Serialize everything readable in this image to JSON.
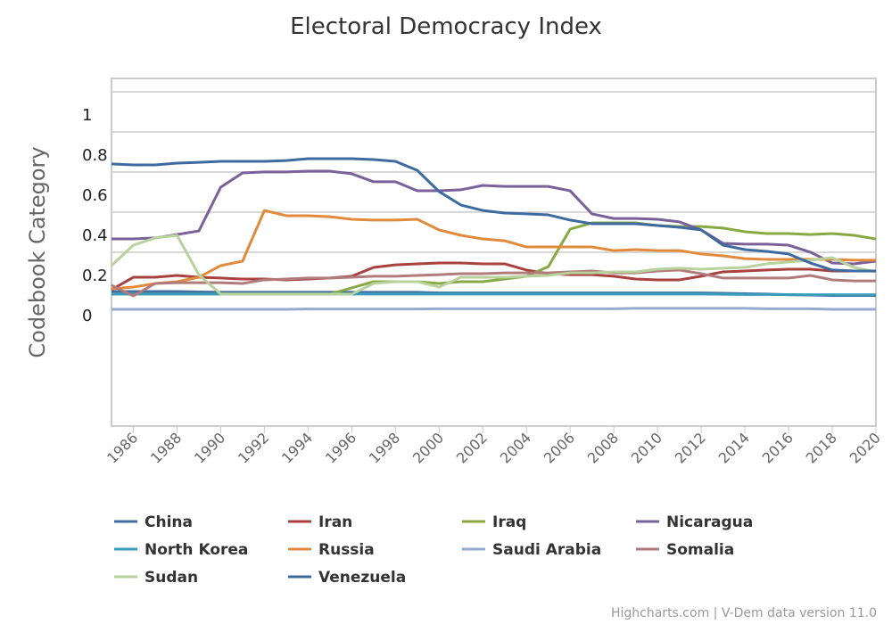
{
  "chart_data": {
    "type": "line",
    "title": "Electoral Democracy Index",
    "xlabel": "",
    "ylabel": "Codebook Category",
    "x": [
      1985,
      1986,
      1987,
      1988,
      1989,
      1990,
      1991,
      1992,
      1993,
      1994,
      1995,
      1996,
      1997,
      1998,
      1999,
      2000,
      2001,
      2002,
      2003,
      2004,
      2005,
      2006,
      2007,
      2008,
      2009,
      2010,
      2011,
      2012,
      2013,
      2014,
      2015,
      2016,
      2017,
      2018,
      2019,
      2020
    ],
    "x_ticks": [
      "1986",
      "1988",
      "1990",
      "1992",
      "1994",
      "1996",
      "1998",
      "2000",
      "2002",
      "2004",
      "2006",
      "2008",
      "2010",
      "2012",
      "2014",
      "2016",
      "2018",
      "2020"
    ],
    "y_ticks": [
      {
        "value": 1,
        "label": "1"
      },
      {
        "value": 0.8,
        "label": "0.8"
      },
      {
        "value": 0.6,
        "label": "0.6"
      },
      {
        "value": 0.4,
        "label": "0.4"
      },
      {
        "value": 0.2,
        "label": "0.2"
      },
      {
        "value": 0,
        "label": "0"
      }
    ],
    "ylim": [
      -0.55,
      1.17
    ],
    "grid": true,
    "legend_placement": "bottom",
    "series": [
      {
        "name": "China",
        "color": "#3f6fa3",
        "values": [
          0.12,
          0.12,
          0.12,
          0.12,
          0.118,
          0.116,
          0.116,
          0.116,
          0.116,
          0.116,
          0.116,
          0.116,
          0.116,
          0.116,
          0.116,
          0.113,
          0.113,
          0.113,
          0.113,
          0.113,
          0.113,
          0.113,
          0.113,
          0.113,
          0.113,
          0.113,
          0.113,
          0.113,
          0.111,
          0.109,
          0.107,
          0.104,
          0.102,
          0.1,
          0.1,
          0.1
        ]
      },
      {
        "name": "Iran",
        "color": "#a9413f",
        "values": [
          0.129,
          0.191,
          0.191,
          0.2,
          0.191,
          0.187,
          0.182,
          0.182,
          0.178,
          0.182,
          0.187,
          0.196,
          0.24,
          0.253,
          0.258,
          0.262,
          0.262,
          0.258,
          0.258,
          0.227,
          0.209,
          0.204,
          0.204,
          0.196,
          0.182,
          0.178,
          0.178,
          0.196,
          0.218,
          0.222,
          0.227,
          0.231,
          0.231,
          0.222,
          0.222,
          0.222
        ]
      },
      {
        "name": "Iraq",
        "color": "#87a843",
        "values": [
          0.107,
          0.107,
          0.107,
          0.107,
          0.107,
          0.107,
          0.107,
          0.107,
          0.107,
          0.107,
          0.107,
          0.138,
          0.169,
          0.169,
          0.169,
          0.16,
          0.169,
          0.169,
          0.182,
          0.196,
          0.244,
          0.431,
          0.462,
          0.462,
          0.462,
          0.449,
          0.444,
          0.444,
          0.436,
          0.418,
          0.409,
          0.409,
          0.404,
          0.409,
          0.4,
          0.382
        ]
      },
      {
        "name": "Nicaragua",
        "color": "#7a6199",
        "values": [
          0.382,
          0.382,
          0.387,
          0.404,
          0.422,
          0.64,
          0.711,
          0.716,
          0.716,
          0.72,
          0.72,
          0.707,
          0.667,
          0.667,
          0.622,
          0.622,
          0.627,
          0.649,
          0.644,
          0.644,
          0.644,
          0.622,
          0.507,
          0.484,
          0.484,
          0.48,
          0.467,
          0.427,
          0.36,
          0.356,
          0.356,
          0.351,
          0.316,
          0.262,
          0.258,
          0.271
        ]
      },
      {
        "name": "North Korea",
        "color": "#3a9bbb",
        "values": [
          0.107,
          0.107,
          0.107,
          0.107,
          0.107,
          0.107,
          0.107,
          0.107,
          0.107,
          0.107,
          0.107,
          0.107,
          0.107,
          0.107,
          0.107,
          0.107,
          0.107,
          0.107,
          0.107,
          0.107,
          0.107,
          0.107,
          0.107,
          0.107,
          0.107,
          0.107,
          0.107,
          0.107,
          0.106,
          0.105,
          0.105,
          0.104,
          0.104,
          0.104,
          0.104,
          0.104
        ]
      },
      {
        "name": "Russia",
        "color": "#e28a3c",
        "values": [
          0.133,
          0.142,
          0.16,
          0.169,
          0.191,
          0.249,
          0.271,
          0.524,
          0.498,
          0.498,
          0.493,
          0.48,
          0.476,
          0.476,
          0.48,
          0.427,
          0.4,
          0.382,
          0.373,
          0.342,
          0.342,
          0.342,
          0.342,
          0.324,
          0.329,
          0.324,
          0.324,
          0.307,
          0.298,
          0.284,
          0.28,
          0.28,
          0.28,
          0.28,
          0.276,
          0.276
        ]
      },
      {
        "name": "Saudi Arabia",
        "color": "#94aacf",
        "values": [
          0.031,
          0.031,
          0.031,
          0.031,
          0.031,
          0.031,
          0.031,
          0.031,
          0.031,
          0.033,
          0.033,
          0.033,
          0.033,
          0.033,
          0.033,
          0.034,
          0.034,
          0.034,
          0.034,
          0.034,
          0.034,
          0.034,
          0.034,
          0.034,
          0.036,
          0.036,
          0.036,
          0.036,
          0.036,
          0.036,
          0.034,
          0.034,
          0.034,
          0.031,
          0.031,
          0.031
        ]
      },
      {
        "name": "Somalia",
        "color": "#b27b7b",
        "values": [
          0.151,
          0.098,
          0.16,
          0.164,
          0.164,
          0.164,
          0.16,
          0.178,
          0.182,
          0.187,
          0.187,
          0.191,
          0.196,
          0.196,
          0.2,
          0.204,
          0.209,
          0.209,
          0.213,
          0.213,
          0.213,
          0.218,
          0.222,
          0.213,
          0.213,
          0.222,
          0.227,
          0.209,
          0.187,
          0.187,
          0.187,
          0.187,
          0.2,
          0.178,
          0.173,
          0.173
        ]
      },
      {
        "name": "Sudan",
        "color": "#b7d29c",
        "values": [
          0.249,
          0.351,
          0.387,
          0.4,
          0.204,
          0.107,
          0.107,
          0.107,
          0.107,
          0.107,
          0.107,
          0.107,
          0.16,
          0.169,
          0.169,
          0.142,
          0.191,
          0.191,
          0.191,
          0.196,
          0.2,
          0.213,
          0.213,
          0.218,
          0.218,
          0.231,
          0.236,
          0.231,
          0.236,
          0.24,
          0.258,
          0.267,
          0.276,
          0.289,
          0.24,
          0.218
        ]
      },
      {
        "name": "Venezuela",
        "color": "#3d6aa1",
        "values": [
          0.756,
          0.751,
          0.751,
          0.76,
          0.764,
          0.769,
          0.769,
          0.769,
          0.773,
          0.782,
          0.782,
          0.782,
          0.778,
          0.769,
          0.724,
          0.618,
          0.551,
          0.524,
          0.511,
          0.507,
          0.502,
          0.476,
          0.458,
          0.458,
          0.458,
          0.449,
          0.44,
          0.427,
          0.351,
          0.329,
          0.32,
          0.307,
          0.262,
          0.227,
          0.222,
          0.222
        ]
      }
    ],
    "credits": "Highcharts.com | V-Dem data version 11.0"
  }
}
